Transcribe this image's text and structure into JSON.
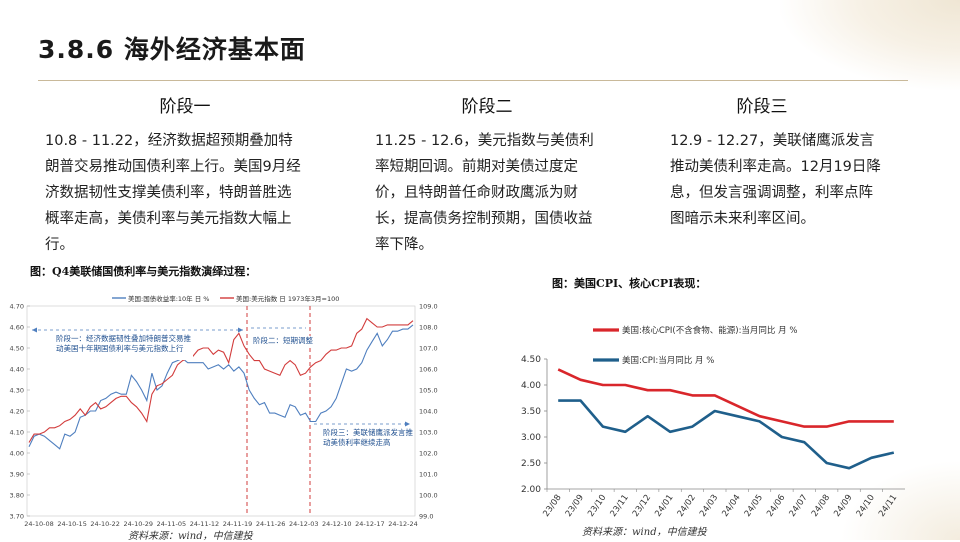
{
  "page_title": "3.8.6 海外经济基本面",
  "stages": [
    {
      "heading": "阶段一",
      "body": "10.8 - 11.22，经济数据超预期叠加特朗普交易推动国债利率上行。美国9月经济数据韧性支撑美债利率，特朗普胜选概率走高，美债利率与美元指数大幅上行。"
    },
    {
      "heading": "阶段二",
      "body": "11.25 - 12.6，美元指数与美债利率短期回调。前期对美债过度定价，且特朗普任命财政鹰派为财长，提高债务控制预期，国债收益率下降。"
    },
    {
      "heading": "阶段三",
      "body": "12.9 - 12.27，美联储鹰派发言推动美债利率走高。12月19日降息，但发言强调调整，利率点阵图暗示未来利率区间。"
    }
  ],
  "figures": {
    "left_title": "图：Q4美联储国债利率与美元指数演绎过程：",
    "right_title": "图：美国CPI、核心CPI表现：",
    "left_source": "资料来源：wind，中信建投",
    "right_source": "资料来源：wind，中信建投"
  },
  "chart_data": [
    {
      "type": "line",
      "title": "图：Q4美联储国债利率与美元指数演绎过程：",
      "x_tick_labels": [
        "24-10-08",
        "24-10-15",
        "24-10-22",
        "24-10-29",
        "24-11-05",
        "24-11-12",
        "24-11-19",
        "24-11-26",
        "24-12-03",
        "24-12-10",
        "24-12-17",
        "24-12-24"
      ],
      "y_left_ticks": [
        "3.70",
        "3.80",
        "3.90",
        "4.00",
        "4.10",
        "4.20",
        "4.30",
        "4.40",
        "4.50",
        "4.60",
        "4.70"
      ],
      "y_left_range": [
        3.7,
        4.7
      ],
      "y_right_ticks": [
        "99.0",
        "100.0",
        "101.0",
        "102.0",
        "103.0",
        "104.0",
        "105.0",
        "106.0",
        "107.0",
        "108.0",
        "109.0"
      ],
      "y_right_range": [
        99.0,
        109.0
      ],
      "legend_position": "top",
      "series": [
        {
          "name": "美国:国债收益率:10年 日 %",
          "axis": "left",
          "color": "#4f7fbf",
          "values": [
            4.03,
            4.08,
            4.09,
            4.08,
            4.06,
            4.04,
            4.02,
            4.09,
            4.08,
            4.1,
            4.17,
            4.18,
            4.2,
            4.2,
            4.25,
            4.26,
            4.28,
            4.29,
            4.28,
            4.28,
            4.37,
            4.34,
            4.3,
            4.25,
            4.38,
            4.3,
            4.32,
            4.38,
            4.43,
            4.44,
            4.45,
            4.43,
            4.43,
            4.43,
            4.43,
            4.4,
            4.41,
            4.42,
            4.4,
            4.42,
            4.39,
            4.41,
            4.38,
            4.3,
            4.26,
            4.23,
            4.24,
            4.19,
            4.19,
            4.18,
            4.17,
            4.23,
            4.22,
            4.18,
            4.19,
            4.15,
            4.15,
            4.19,
            4.2,
            4.22,
            4.26,
            4.33,
            4.4,
            4.39,
            4.4,
            4.43,
            4.49,
            4.53,
            4.57,
            4.51,
            4.54,
            4.58,
            4.58,
            4.59,
            4.59,
            4.61
          ]
        },
        {
          "name": "美国:美元指数 日 1973年3月=100",
          "axis": "right",
          "color": "#d23c3c",
          "values": [
            102.5,
            102.9,
            102.9,
            103.0,
            103.2,
            103.2,
            103.3,
            103.5,
            103.6,
            103.8,
            104.1,
            103.8,
            104.2,
            104.4,
            104.1,
            104.2,
            104.4,
            104.6,
            104.7,
            104.7,
            104.4,
            104.2,
            103.9,
            103.5,
            104.8,
            105.2,
            105.3,
            105.5,
            105.7,
            106.2,
            106.4,
            106.5,
            106.6,
            106.9,
            107.0,
            107.0,
            106.7,
            106.9,
            106.8,
            106.3,
            107.4,
            107.7,
            107.1,
            106.7,
            106.4,
            106.4,
            106.0,
            105.9,
            105.8,
            105.7,
            106.2,
            106.4,
            106.2,
            105.7,
            105.8,
            106.1,
            106.3,
            106.4,
            106.7,
            106.9,
            106.9,
            107.0,
            107.0,
            107.1,
            107.7,
            107.9,
            108.4,
            108.2,
            108.0,
            108.0,
            108.1,
            108.1,
            108.1,
            108.1,
            108.1,
            108.3
          ]
        }
      ],
      "annotations": [
        "阶段一：经济数据韧性叠加特朗普交易推动美国十年期国债利率与美元指数上行",
        "阶段二：短期调整",
        "阶段三：美联储鹰派发言推动美债利率继续走高"
      ]
    },
    {
      "type": "line",
      "title": "图：美国CPI、核心CPI表现：",
      "categories": [
        "23/08",
        "23/09",
        "23/10",
        "23/11",
        "23/12",
        "24/01",
        "24/02",
        "24/03",
        "24/04",
        "24/05",
        "24/06",
        "24/07",
        "24/08",
        "24/09",
        "24/10",
        "24/11"
      ],
      "y_ticks": [
        "2.00",
        "2.50",
        "3.00",
        "3.50",
        "4.00",
        "4.50"
      ],
      "ylim": [
        2.0,
        4.5
      ],
      "legend_position": "top-left",
      "series": [
        {
          "name": "美国:核心CPI(不含食物、能源):当月同比 月 %",
          "color": "#d9262b",
          "values": [
            4.3,
            4.1,
            4.0,
            4.0,
            3.9,
            3.9,
            3.8,
            3.8,
            3.6,
            3.4,
            3.3,
            3.2,
            3.2,
            3.3,
            3.3,
            3.3
          ]
        },
        {
          "name": "美国:CPI:当月同比 月 %",
          "color": "#1f5f8b",
          "values": [
            3.7,
            3.7,
            3.2,
            3.1,
            3.4,
            3.1,
            3.2,
            3.5,
            3.4,
            3.3,
            3.0,
            2.9,
            2.5,
            2.4,
            2.6,
            2.7
          ]
        }
      ]
    }
  ]
}
